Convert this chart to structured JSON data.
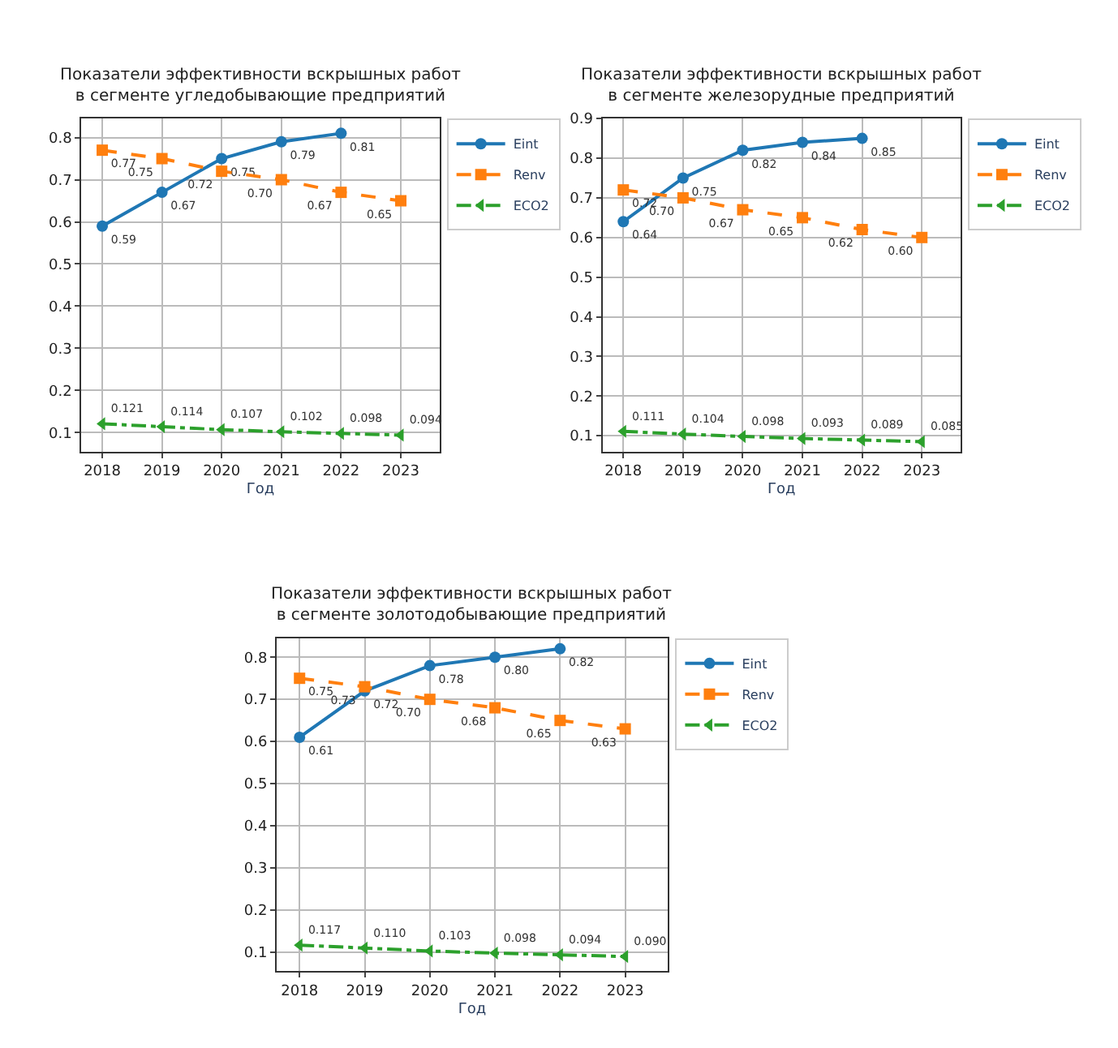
{
  "chart_data": [
    {
      "type": "line",
      "title": "Показатели эффективности вскрышных работ\nв сегменте угледобывающие предприятий",
      "xlabel": "Год",
      "categories": [
        "2018",
        "2019",
        "2020",
        "2021",
        "2022",
        "2023"
      ],
      "ylim": [
        0.055,
        0.845
      ],
      "yticks": [
        0.1,
        0.2,
        0.3,
        0.4,
        0.5,
        0.6,
        0.7,
        0.8
      ],
      "grid": true,
      "legend": "right",
      "series": [
        {
          "name": "Eint",
          "color": "#1f77b4",
          "marker": "circle",
          "line_style": "solid",
          "values": [
            0.59,
            0.67,
            0.75,
            0.79,
            0.81,
            null
          ],
          "value_labels": [
            "0.59",
            "0.67",
            "0.75",
            "0.79",
            "0.81",
            null
          ]
        },
        {
          "name": "Renv",
          "color": "#ff7f0e",
          "marker": "square",
          "line_style": "dashed",
          "values": [
            0.77,
            0.75,
            0.72,
            0.7,
            0.67,
            0.65
          ],
          "value_labels": [
            "0.77",
            "0.75",
            "0.72",
            "0.70",
            "0.67",
            "0.65"
          ]
        },
        {
          "name": "ECO2",
          "color": "#2ca02c",
          "marker": "triangle",
          "line_style": "dashdot",
          "values": [
            0.121,
            0.114,
            0.107,
            0.102,
            0.098,
            0.094
          ],
          "value_labels": [
            "0.121",
            "0.114",
            "0.107",
            "0.102",
            "0.098",
            "0.094"
          ]
        }
      ]
    },
    {
      "type": "line",
      "title": "Показатели эффективности вскрышных работ\nв сегменте железорудные предприятий",
      "xlabel": "Год",
      "categories": [
        "2018",
        "2019",
        "2020",
        "2021",
        "2022",
        "2023"
      ],
      "ylim": [
        0.06,
        0.9
      ],
      "yticks": [
        0.1,
        0.2,
        0.3,
        0.4,
        0.5,
        0.6,
        0.7,
        0.8,
        0.9
      ],
      "grid": true,
      "legend": "right",
      "series": [
        {
          "name": "Eint",
          "color": "#1f77b4",
          "marker": "circle",
          "line_style": "solid",
          "values": [
            0.64,
            0.75,
            0.82,
            0.84,
            0.85,
            null
          ],
          "value_labels": [
            "0.64",
            "0.75",
            "0.82",
            "0.84",
            "0.85",
            null
          ]
        },
        {
          "name": "Renv",
          "color": "#ff7f0e",
          "marker": "square",
          "line_style": "dashed",
          "values": [
            0.72,
            0.7,
            0.67,
            0.65,
            0.62,
            0.6
          ],
          "value_labels": [
            "0.72",
            "0.70",
            "0.67",
            "0.65",
            "0.62",
            "0.60"
          ]
        },
        {
          "name": "ECO2",
          "color": "#2ca02c",
          "marker": "triangle",
          "line_style": "dashdot",
          "values": [
            0.111,
            0.104,
            0.098,
            0.093,
            0.089,
            0.085
          ],
          "value_labels": [
            "0.111",
            "0.104",
            "0.098",
            "0.093",
            "0.089",
            "0.085"
          ]
        }
      ]
    },
    {
      "type": "line",
      "title": "Показатели эффективности вскрышных работ\nв сегменте золотодобывающие предприятий",
      "xlabel": "Год",
      "categories": [
        "2018",
        "2019",
        "2020",
        "2021",
        "2022",
        "2023"
      ],
      "ylim": [
        0.055,
        0.845
      ],
      "yticks": [
        0.1,
        0.2,
        0.3,
        0.4,
        0.5,
        0.6,
        0.7,
        0.8
      ],
      "grid": true,
      "legend": "right",
      "series": [
        {
          "name": "Eint",
          "color": "#1f77b4",
          "marker": "circle",
          "line_style": "solid",
          "values": [
            0.61,
            0.72,
            0.78,
            0.8,
            0.82,
            null
          ],
          "value_labels": [
            "0.61",
            "0.72",
            "0.78",
            "0.80",
            "0.82",
            null
          ]
        },
        {
          "name": "Renv",
          "color": "#ff7f0e",
          "marker": "square",
          "line_style": "dashed",
          "values": [
            0.75,
            0.73,
            0.7,
            0.68,
            0.65,
            0.63
          ],
          "value_labels": [
            "0.75",
            "0.73",
            "0.70",
            "0.68",
            "0.65",
            "0.63"
          ]
        },
        {
          "name": "ECO2",
          "color": "#2ca02c",
          "marker": "triangle",
          "line_style": "dashdot",
          "values": [
            0.117,
            0.11,
            0.103,
            0.098,
            0.094,
            0.09
          ],
          "value_labels": [
            "0.117",
            "0.110",
            "0.103",
            "0.098",
            "0.094",
            "0.090"
          ]
        }
      ]
    }
  ]
}
